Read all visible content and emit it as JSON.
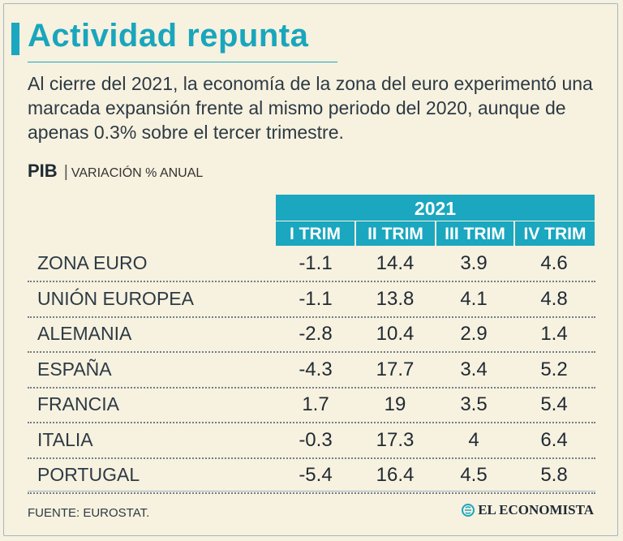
{
  "header": {
    "title": "Actividad repunta",
    "intro": "Al cierre del 2021, la economía de la zona del euro experimentó una marcada expansión frente al mismo periodo del 2020, aunque de apenas 0.3% sobre el tercer trimestre.",
    "indicator": "PIB",
    "separator": "|",
    "unit": "VARIACIÓN % ANUAL"
  },
  "chart_data": {
    "type": "table",
    "title": "Actividad repunta",
    "subtitle": "PIB | VARIACIÓN % ANUAL",
    "year": "2021",
    "columns": [
      "I TRIM",
      "II TRIM",
      "III TRIM",
      "IV TRIM"
    ],
    "rows": [
      {
        "label": "ZONA EURO",
        "values": [
          "-1.1",
          "14.4",
          "3.9",
          "4.6"
        ]
      },
      {
        "label": "UNIÓN EUROPEA",
        "values": [
          "-1.1",
          "13.8",
          "4.1",
          "4.8"
        ]
      },
      {
        "label": "ALEMANIA",
        "values": [
          "-2.8",
          "10.4",
          "2.9",
          "1.4"
        ]
      },
      {
        "label": "ESPAÑA",
        "values": [
          "-4.3",
          "17.7",
          "3.4",
          "5.2"
        ]
      },
      {
        "label": "FRANCIA",
        "values": [
          "1.7",
          "19",
          "3.5",
          "5.4"
        ]
      },
      {
        "label": "ITALIA",
        "values": [
          "-0.3",
          "17.3",
          "4",
          "6.4"
        ]
      },
      {
        "label": "PORTUGAL",
        "values": [
          "-5.4",
          "16.4",
          "4.5",
          "5.8"
        ]
      }
    ]
  },
  "footer": {
    "source": "FUENTE: EUROSTAT.",
    "brand": "EL ECONOMISTA"
  },
  "colors": {
    "accent": "#1aa7bf",
    "background": "#f7f1df",
    "text": "#1f2a33"
  },
  "icons": {
    "brand_logo": "el-economista-logo-icon"
  }
}
